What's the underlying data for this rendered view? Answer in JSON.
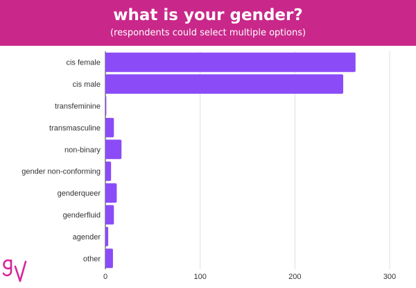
{
  "header": {
    "title": "what is your gender?",
    "subtitle": "(respondents could select multiple options)",
    "background": "#c9288a"
  },
  "logo": {
    "letters": "gv",
    "color": "#d6249a"
  },
  "chart_data": {
    "type": "bar",
    "orientation": "horizontal",
    "categories": [
      "cis female",
      "cis male",
      "transfeminine",
      "transmasculine",
      "non-binary",
      "gender non-conforming",
      "genderqueer",
      "genderfluid",
      "agender",
      "other"
    ],
    "values": [
      264,
      251,
      1,
      9,
      17,
      6,
      12,
      9,
      3,
      8
    ],
    "xticks": [
      "0",
      "100",
      "200",
      "300"
    ],
    "xlim": [
      0,
      300
    ],
    "bar_color": "#8b4cf7",
    "grid": true
  }
}
